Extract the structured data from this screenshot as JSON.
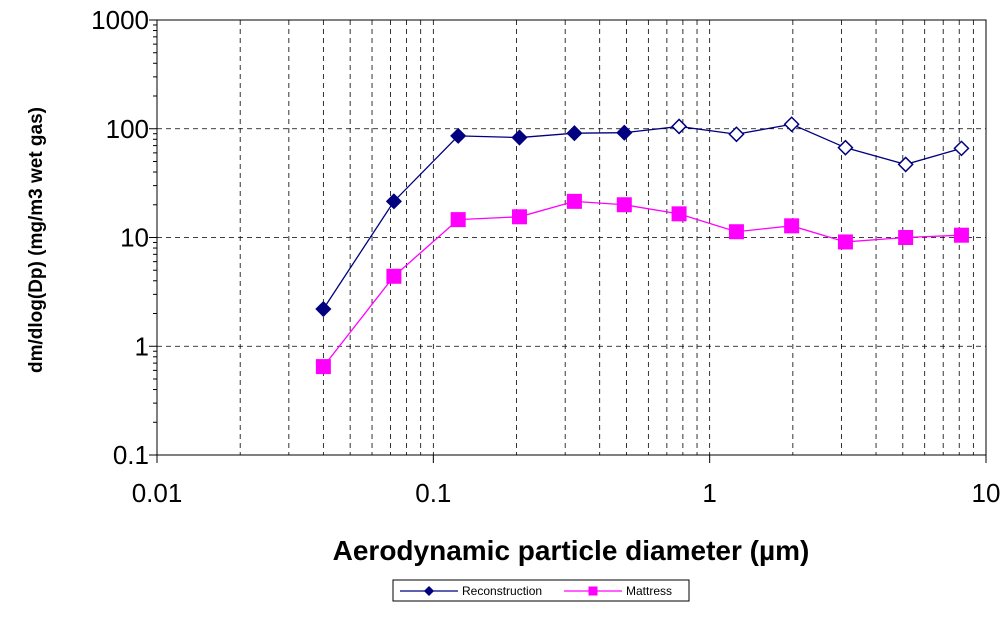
{
  "chart_data": {
    "type": "line",
    "xscale": "log",
    "yscale": "log",
    "xlim": [
      0.01,
      10
    ],
    "ylim": [
      0.1,
      1000
    ],
    "xlabel": "Aerodynamic particle diameter  (µm)",
    "ylabel": "dm/dlog(Dp)  (mg/m3 wet gas)",
    "x_tick_labels": [
      "0.01",
      "0.1",
      "1",
      "10"
    ],
    "y_tick_labels": [
      "0.1",
      "1",
      "10",
      "100",
      "1000"
    ],
    "grid": "dashed major and minor gridlines",
    "legend_position": "bottom-center",
    "series": [
      {
        "name": "Reconstruction",
        "color": "#000080",
        "marker": "diamond",
        "x": [
          0.04,
          0.072,
          0.123,
          0.205,
          0.324,
          0.491,
          0.775,
          1.25,
          1.98,
          3.1,
          5.12,
          8.15
        ],
        "values": [
          2.2,
          21.5,
          86,
          83,
          91,
          92,
          105,
          89,
          110,
          67,
          47,
          66
        ],
        "hollow": [
          false,
          false,
          false,
          false,
          false,
          false,
          true,
          true,
          true,
          true,
          true,
          true
        ]
      },
      {
        "name": "Mattress",
        "color": "#ff00ff",
        "marker": "square",
        "x": [
          0.04,
          0.072,
          0.123,
          0.205,
          0.324,
          0.491,
          0.775,
          1.25,
          1.98,
          3.1,
          5.12,
          8.15
        ],
        "values": [
          0.65,
          4.4,
          14.6,
          15.5,
          21.5,
          20,
          16.5,
          11.3,
          12.8,
          9.1,
          10,
          10.5
        ]
      }
    ]
  }
}
